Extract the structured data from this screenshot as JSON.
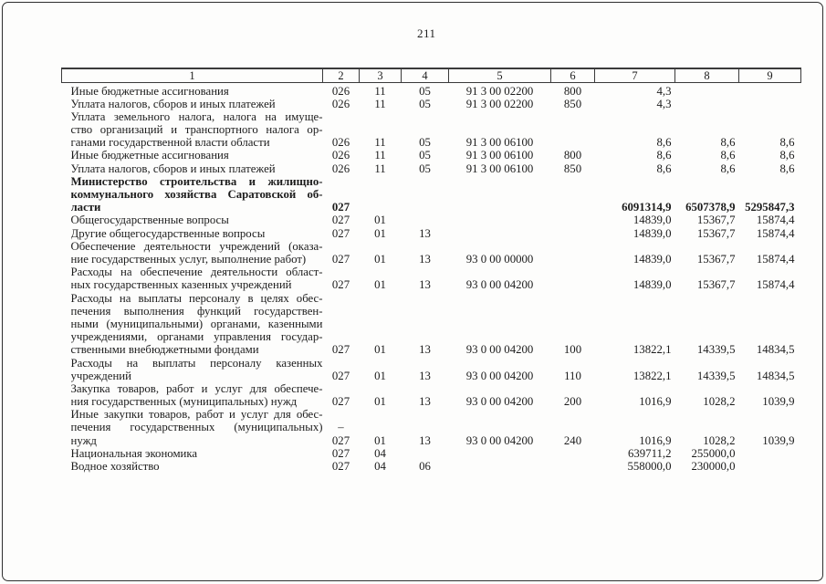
{
  "page": {
    "number": "211"
  },
  "table": {
    "headers": [
      "1",
      "2",
      "3",
      "4",
      "5",
      "6",
      "7",
      "8",
      "9"
    ],
    "rows": [
      {
        "bold": false,
        "desc": [
          "Иные бюджетные ассигнования"
        ],
        "cells": [
          "026",
          "11",
          "05",
          "91 3 00 02200",
          "800",
          "4,3",
          "",
          ""
        ]
      },
      {
        "bold": false,
        "desc": [
          "Уплата налогов, сборов и иных платежей"
        ],
        "cells": [
          "026",
          "11",
          "05",
          "91 3 00 02200",
          "850",
          "4,3",
          "",
          ""
        ]
      },
      {
        "bold": false,
        "desc": [
          "Уплата земельного налога, налога на имуще-",
          "ство организаций и транспортного налога ор-",
          "ганами государственной власти области"
        ],
        "cells": [
          "026",
          "11",
          "05",
          "91 3 00 06100",
          "",
          "8,6",
          "8,6",
          "8,6"
        ]
      },
      {
        "bold": false,
        "desc": [
          "Иные бюджетные ассигнования"
        ],
        "cells": [
          "026",
          "11",
          "05",
          "91 3 00 06100",
          "800",
          "8,6",
          "8,6",
          "8,6"
        ]
      },
      {
        "bold": false,
        "desc": [
          "Уплата налогов, сборов и иных платежей"
        ],
        "cells": [
          "026",
          "11",
          "05",
          "91 3 00 06100",
          "850",
          "8,6",
          "8,6",
          "8,6"
        ]
      },
      {
        "bold": true,
        "desc": [
          "Министерство строительства и жилищно-",
          "коммунального хозяйства Саратовской об-",
          "ласти"
        ],
        "cells": [
          "027",
          "",
          "",
          "",
          "",
          "6091314,9",
          "6507378,9",
          "5295847,3"
        ]
      },
      {
        "bold": false,
        "desc": [
          "Общегосударственные вопросы"
        ],
        "cells": [
          "027",
          "01",
          "",
          "",
          "",
          "14839,0",
          "15367,7",
          "15874,4"
        ]
      },
      {
        "bold": false,
        "desc": [
          "Другие общегосударственные вопросы"
        ],
        "cells": [
          "027",
          "01",
          "13",
          "",
          "",
          "14839,0",
          "15367,7",
          "15874,4"
        ]
      },
      {
        "bold": false,
        "desc": [
          "Обеспечение деятельности учреждений (оказа-",
          "ние государственных услуг, выполнение работ)"
        ],
        "cells": [
          "027",
          "01",
          "13",
          "93 0 00 00000",
          "",
          "14839,0",
          "15367,7",
          "15874,4"
        ]
      },
      {
        "bold": false,
        "desc": [
          "Расходы на обеспечение деятельности област-",
          "ных государственных казенных учреждений"
        ],
        "cells": [
          "027",
          "01",
          "13",
          "93 0 00 04200",
          "",
          "14839,0",
          "15367,7",
          "15874,4"
        ]
      },
      {
        "bold": false,
        "desc": [
          "Расходы на выплаты персоналу в целях обес-",
          "печения выполнения функций государствен-",
          "ными (муниципальными) органами, казенными",
          "учреждениями, органами управления государ-",
          "ственными внебюджетными фондами"
        ],
        "cells": [
          "027",
          "01",
          "13",
          "93 0 00 04200",
          "100",
          "13822,1",
          "14339,5",
          "14834,5"
        ]
      },
      {
        "bold": false,
        "desc": [
          "Расходы на выплаты персоналу казенных",
          "учреждений"
        ],
        "cells": [
          "027",
          "01",
          "13",
          "93 0 00 04200",
          "110",
          "13822,1",
          "14339,5",
          "14834,5"
        ]
      },
      {
        "bold": false,
        "desc": [
          "Закупка товаров, работ и услуг для обеспече-",
          "ния государственных (муниципальных) нужд"
        ],
        "cells": [
          "027",
          "01",
          "13",
          "93 0 00 04200",
          "200",
          "1016,9",
          "1028,2",
          "1039,9"
        ]
      },
      {
        "bold": false,
        "desc": [
          "Иные закупки товаров, работ и услуг для обес-",
          "печения государственных (муниципальных)",
          "нужд"
        ],
        "cells": [
          "–\n027",
          "01",
          "13",
          "93 0 00 04200",
          "240",
          "1016,9",
          "1028,2",
          "1039,9"
        ]
      },
      {
        "bold": false,
        "desc": [
          "Национальная экономика"
        ],
        "cells": [
          "027",
          "04",
          "",
          "",
          "",
          "639711,2",
          "255000,0",
          ""
        ]
      },
      {
        "bold": false,
        "desc": [
          "Водное хозяйство"
        ],
        "cells": [
          "027",
          "04",
          "06",
          "",
          "",
          "558000,0",
          "230000,0",
          ""
        ]
      }
    ]
  }
}
